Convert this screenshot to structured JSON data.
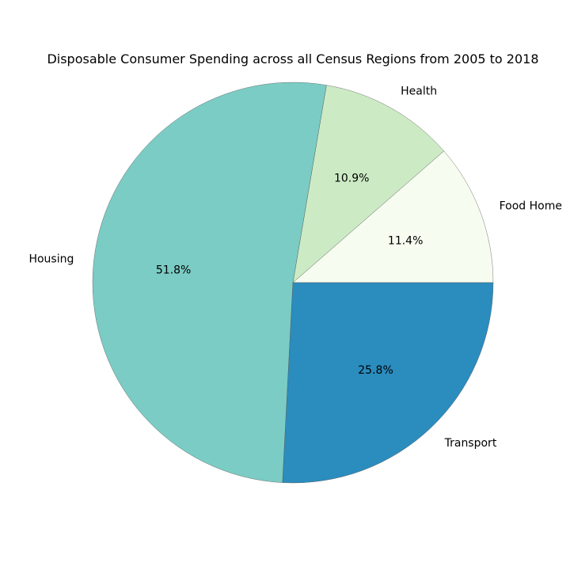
{
  "chart_data": {
    "type": "pie",
    "title": "Disposable Consumer Spending across all Census Regions from 2005 to 2018",
    "categories": [
      "Food Home",
      "Health",
      "Housing",
      "Transport"
    ],
    "values": [
      11.4,
      10.9,
      51.8,
      25.8
    ],
    "labels_pct": [
      "11.4%",
      "10.9%",
      "51.8%",
      "25.8%"
    ],
    "colors": [
      "#f7fcf0",
      "#ccebc5",
      "#7bccc4",
      "#2b8cbe"
    ],
    "start_angle_deg": 0,
    "direction": "counterclockwise",
    "legend": "none"
  }
}
